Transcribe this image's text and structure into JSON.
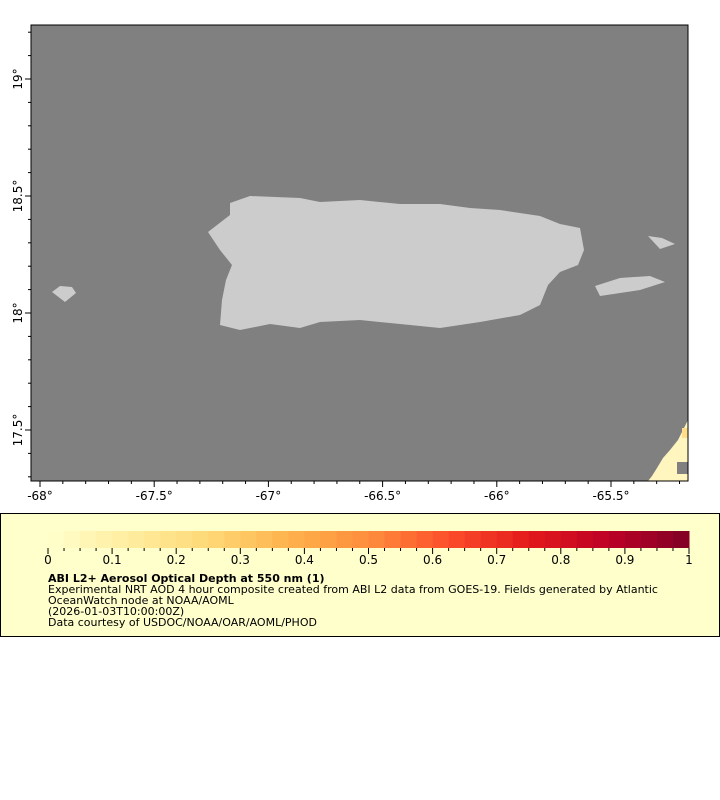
{
  "map": {
    "ocean_color": "#808080",
    "land_color": "#cccccc",
    "lon_ticks": [
      {
        "value": -68,
        "label": "-68°"
      },
      {
        "value": -67.5,
        "label": "-67.5°"
      },
      {
        "value": -67,
        "label": "-67°"
      },
      {
        "value": -66.5,
        "label": "-66.5°"
      },
      {
        "value": -66,
        "label": "-66°"
      },
      {
        "value": -65.5,
        "label": "-65.5°"
      }
    ],
    "lat_ticks": [
      {
        "value": 19,
        "label": "19°"
      },
      {
        "value": 18.5,
        "label": "18.5°"
      },
      {
        "value": 18,
        "label": "18°"
      },
      {
        "value": 17.5,
        "label": "17.5°"
      }
    ]
  },
  "colorbar": {
    "min": 0,
    "max": 1,
    "colors": [
      "#ffffcc",
      "#ffeda0",
      "#fed976",
      "#feb24c",
      "#fd8d3c",
      "#fc4e2a",
      "#e31a1c",
      "#bd0026",
      "#800026"
    ],
    "tick_labels": [
      "0",
      "0.1",
      "0.2",
      "0.3",
      "0.4",
      "0.5",
      "0.6",
      "0.7",
      "0.8",
      "0.9",
      "1"
    ]
  },
  "legend": {
    "title": "ABI L2+ Aerosol Optical Depth at 550 nm (1)",
    "line1": "Experimental NRT AOD 4 hour composite created from ABI L2 data from GOES-19. Fields generated by Atlantic",
    "line2": "OceanWatch node at NOAA/AOML",
    "line3": "(2026-01-03T10:00:00Z)",
    "line4": "Data courtesy of USDOC/NOAA/OAR/AOML/PHOD"
  }
}
